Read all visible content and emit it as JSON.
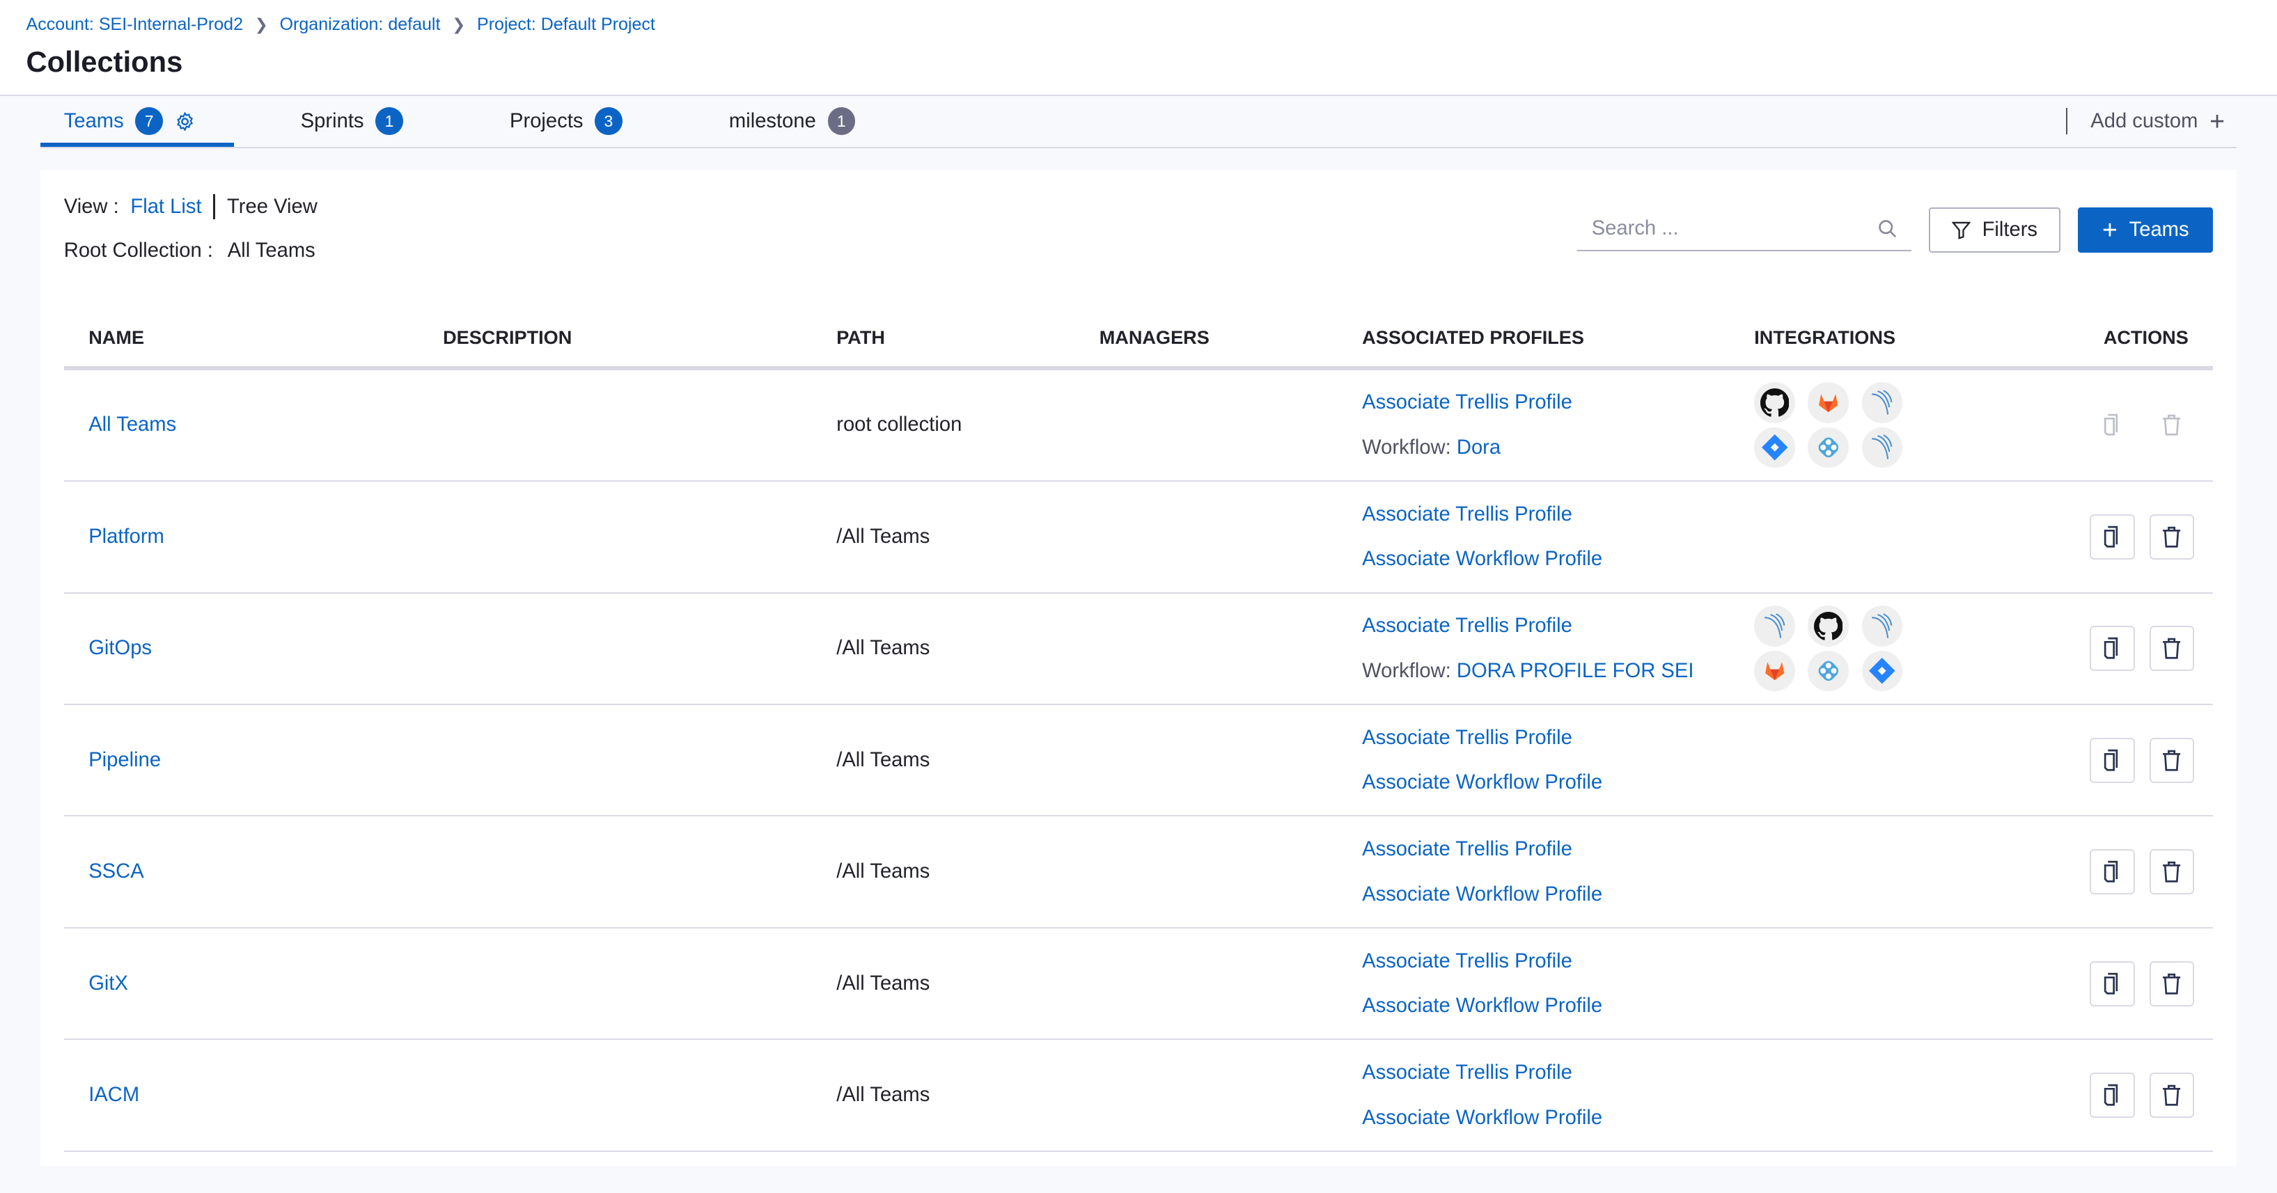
{
  "breadcrumb": [
    "Account: SEI-Internal-Prod2",
    "Organization: default",
    "Project: Default Project"
  ],
  "page_title": "Collections",
  "tabs": [
    {
      "label": "Teams",
      "count": "7",
      "active": true
    },
    {
      "label": "Sprints",
      "count": "1"
    },
    {
      "label": "Projects",
      "count": "3"
    },
    {
      "label": "milestone",
      "count": "1"
    }
  ],
  "add_custom": "Add custom",
  "view": {
    "label": "View :",
    "flat": "Flat List",
    "tree": "Tree View"
  },
  "root_collection": {
    "label": "Root Collection :",
    "value": "All Teams"
  },
  "search": {
    "placeholder": "Search ..."
  },
  "filters_label": "Filters",
  "add_teams_label": "Teams",
  "columns": [
    "NAME",
    "DESCRIPTION",
    "PATH",
    "MANAGERS",
    "ASSOCIATED PROFILES",
    "INTEGRATIONS",
    "ACTIONS"
  ],
  "rows": [
    {
      "name": "All Teams",
      "description": "",
      "path": "root collection",
      "managers": "",
      "trellis": "Associate Trellis Profile",
      "workflow_prefix": "Workflow:",
      "workflow": "Dora",
      "integrations": [
        "github",
        "gitlab",
        "harness",
        "jira",
        "azure",
        "harness"
      ],
      "actions_disabled": true
    },
    {
      "name": "Platform",
      "description": "",
      "path": "/All Teams",
      "managers": "",
      "trellis": "Associate Trellis Profile",
      "workflow": "Associate Workflow Profile",
      "integrations": []
    },
    {
      "name": "GitOps",
      "description": "",
      "path": "/All Teams",
      "managers": "",
      "trellis": "Associate Trellis Profile",
      "workflow_prefix": "Workflow:",
      "workflow": "DORA PROFILE FOR SEI",
      "integrations": [
        "harness",
        "github",
        "harness",
        "gitlab",
        "azure",
        "jira"
      ]
    },
    {
      "name": "Pipeline",
      "description": "",
      "path": "/All Teams",
      "managers": "",
      "trellis": "Associate Trellis Profile",
      "workflow": "Associate Workflow Profile",
      "integrations": []
    },
    {
      "name": "SSCA",
      "description": "",
      "path": "/All Teams",
      "managers": "",
      "trellis": "Associate Trellis Profile",
      "workflow": "Associate Workflow Profile",
      "integrations": []
    },
    {
      "name": "GitX",
      "description": "",
      "path": "/All Teams",
      "managers": "",
      "trellis": "Associate Trellis Profile",
      "workflow": "Associate Workflow Profile",
      "integrations": []
    },
    {
      "name": "IACM",
      "description": "",
      "path": "/All Teams",
      "managers": "",
      "trellis": "Associate Trellis Profile",
      "workflow": "Associate Workflow Profile",
      "integrations": []
    }
  ],
  "colors": {
    "primary": "#0b64c4",
    "border": "#d9dae5"
  }
}
